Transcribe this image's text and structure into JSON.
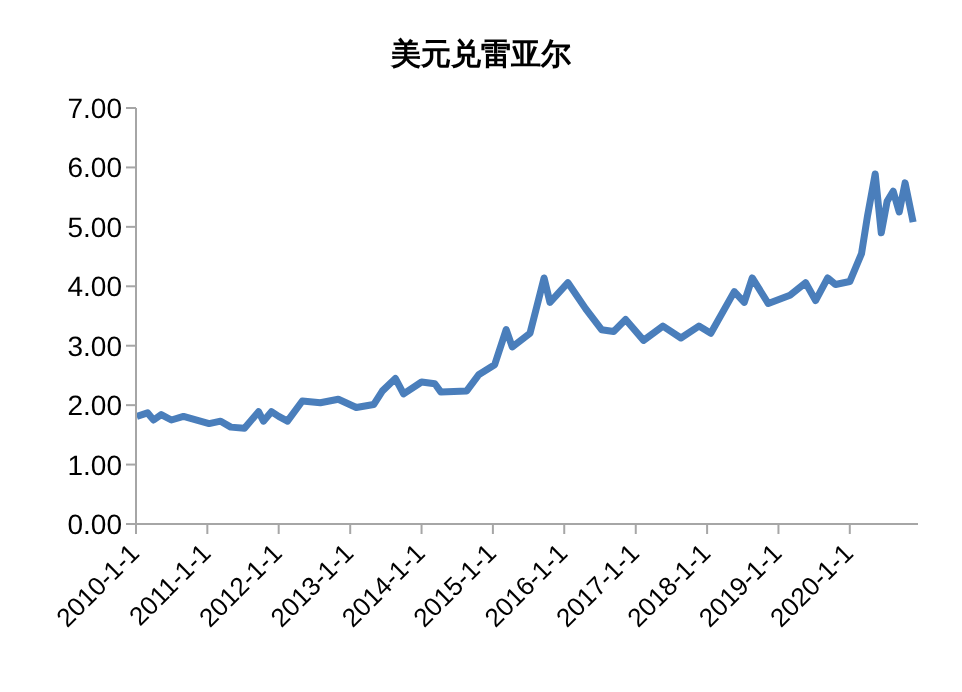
{
  "chart_data": {
    "type": "line",
    "title": "美元兑雷亚尔",
    "x": [
      "2010-01-05",
      "2010-03-01",
      "2010-04-01",
      "2010-05-10",
      "2010-07-01",
      "2010-09-01",
      "2011-01-10",
      "2011-03-10",
      "2011-05-01",
      "2011-07-10",
      "2011-09-20",
      "2011-10-15",
      "2011-11-25",
      "2012-01-01",
      "2012-02-15",
      "2012-05-01",
      "2012-08-01",
      "2012-11-01",
      "2013-02-01",
      "2013-05-01",
      "2013-06-15",
      "2013-08-20",
      "2013-10-01",
      "2014-01-01",
      "2014-03-10",
      "2014-04-10",
      "2014-08-20",
      "2014-10-20",
      "2015-01-10",
      "2015-03-10",
      "2015-04-10",
      "2015-07-10",
      "2015-09-20",
      "2015-10-20",
      "2016-01-20",
      "2016-04-20",
      "2016-07-10",
      "2016-09-10",
      "2016-11-10",
      "2017-02-10",
      "2017-05-20",
      "2017-08-20",
      "2017-11-20",
      "2018-01-20",
      "2018-05-20",
      "2018-07-10",
      "2018-08-20",
      "2018-11-10",
      "2019-03-01",
      "2019-05-20",
      "2019-07-10",
      "2019-09-10",
      "2019-10-20",
      "2020-01-01",
      "2020-03-01",
      "2020-04-01",
      "2020-05-10",
      "2020-06-10",
      "2020-07-10",
      "2020-08-10",
      "2020-09-10",
      "2020-10-10",
      "2020-11-20"
    ],
    "series": [
      {
        "color": "#4a7ebb",
        "values": [
          1.81,
          1.87,
          1.75,
          1.84,
          1.75,
          1.81,
          1.69,
          1.73,
          1.63,
          1.61,
          1.89,
          1.73,
          1.89,
          1.81,
          1.73,
          2.07,
          2.04,
          2.1,
          1.96,
          2.01,
          2.24,
          2.45,
          2.19,
          2.39,
          2.36,
          2.22,
          2.24,
          2.51,
          2.68,
          3.27,
          2.98,
          3.21,
          4.14,
          3.73,
          4.06,
          3.62,
          3.27,
          3.24,
          3.44,
          3.09,
          3.33,
          3.13,
          3.33,
          3.21,
          3.91,
          3.73,
          4.14,
          3.71,
          3.85,
          4.06,
          3.76,
          4.14,
          4.03,
          4.08,
          4.55,
          5.19,
          5.89,
          4.9,
          5.43,
          5.6,
          5.25,
          5.74,
          5.08
        ]
      }
    ],
    "xlim": [
      "2010-01-01",
      "2020-12-15"
    ],
    "xticks": [
      {
        "value": "2010-01-01",
        "label": "2010-1-1"
      },
      {
        "value": "2011-01-01",
        "label": "2011-1-1"
      },
      {
        "value": "2012-01-01",
        "label": "2012-1-1"
      },
      {
        "value": "2013-01-01",
        "label": "2013-1-1"
      },
      {
        "value": "2014-01-01",
        "label": "2014-1-1"
      },
      {
        "value": "2015-01-01",
        "label": "2015-1-1"
      },
      {
        "value": "2016-01-01",
        "label": "2016-1-1"
      },
      {
        "value": "2017-01-01",
        "label": "2017-1-1"
      },
      {
        "value": "2018-01-01",
        "label": "2018-1-1"
      },
      {
        "value": "2019-01-01",
        "label": "2019-1-1"
      },
      {
        "value": "2020-01-01",
        "label": "2020-1-1"
      }
    ],
    "ylim": [
      0,
      7
    ],
    "yticks": [
      {
        "value": 0,
        "label": "0.00"
      },
      {
        "value": 1,
        "label": "1.00"
      },
      {
        "value": 2,
        "label": "2.00"
      },
      {
        "value": 3,
        "label": "3.00"
      },
      {
        "value": 4,
        "label": "4.00"
      },
      {
        "value": 5,
        "label": "5.00"
      },
      {
        "value": 6,
        "label": "6.00"
      },
      {
        "value": 7,
        "label": "7.00"
      }
    ],
    "grid": false,
    "legend": false,
    "marker": "none",
    "line_style": "solid"
  }
}
